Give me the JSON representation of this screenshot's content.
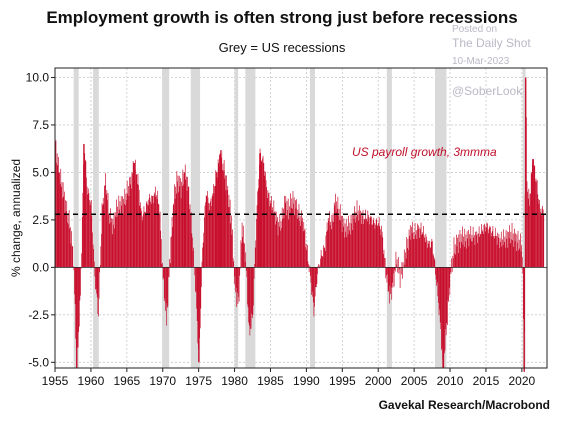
{
  "header": {
    "title": "Employment growth is often strong just before recessions",
    "subtitle": "Grey = US recessions"
  },
  "watermark": {
    "posted_on": "Posted on",
    "site": "The Daily Shot",
    "date": "10-Mar-2023",
    "handle": "@SoberLook"
  },
  "footer": {
    "source": "Gavekal Research/Macrobond"
  },
  "colors": {
    "bar": "#c8102e",
    "recession": "#d9d9d9",
    "threshold": "#000000"
  },
  "chart_data": {
    "type": "bar",
    "title": "Employment growth is often strong just before recessions",
    "subtitle": "Grey = US recessions",
    "ylabel": "% change, annualized",
    "xlabel": "",
    "xlim": [
      1955,
      2023.5
    ],
    "ylim": [
      -5.3,
      10.5
    ],
    "xticks": [
      "1955",
      "1960",
      "1965",
      "1970",
      "1975",
      "1980",
      "1985",
      "1990",
      "1995",
      "2000",
      "2005",
      "2010",
      "2015",
      "2020"
    ],
    "yticks": [
      "-5.0",
      "-2.5",
      "0.0",
      "2.5",
      "5.0",
      "7.5",
      "10.0"
    ],
    "grid": true,
    "series": [
      {
        "name": "US payroll growth, 3mmma",
        "x": [
          1955.0,
          1955.5,
          1956.0,
          1956.5,
          1957.0,
          1957.5,
          1958.0,
          1958.5,
          1959.0,
          1959.5,
          1960.0,
          1960.5,
          1961.0,
          1961.5,
          1962.0,
          1962.5,
          1963.0,
          1963.5,
          1964.0,
          1964.5,
          1965.0,
          1965.5,
          1966.0,
          1966.5,
          1967.0,
          1967.5,
          1968.0,
          1968.5,
          1969.0,
          1969.5,
          1970.0,
          1970.5,
          1971.0,
          1971.5,
          1972.0,
          1972.5,
          1973.0,
          1973.5,
          1974.0,
          1974.5,
          1975.0,
          1975.5,
          1976.0,
          1976.5,
          1977.0,
          1977.5,
          1978.0,
          1978.5,
          1979.0,
          1979.5,
          1980.0,
          1980.5,
          1981.0,
          1981.5,
          1982.0,
          1982.5,
          1983.0,
          1983.5,
          1984.0,
          1984.5,
          1985.0,
          1985.5,
          1986.0,
          1986.5,
          1987.0,
          1987.5,
          1988.0,
          1988.5,
          1989.0,
          1989.5,
          1990.0,
          1990.5,
          1991.0,
          1991.5,
          1992.0,
          1992.5,
          1993.0,
          1993.5,
          1994.0,
          1994.5,
          1995.0,
          1995.5,
          1996.0,
          1996.5,
          1997.0,
          1997.5,
          1998.0,
          1998.5,
          1999.0,
          1999.5,
          2000.0,
          2000.5,
          2001.0,
          2001.5,
          2002.0,
          2002.5,
          2003.0,
          2003.5,
          2004.0,
          2004.5,
          2005.0,
          2005.5,
          2006.0,
          2006.5,
          2007.0,
          2007.5,
          2008.0,
          2008.5,
          2009.0,
          2009.5,
          2010.0,
          2010.5,
          2011.0,
          2011.5,
          2012.0,
          2012.5,
          2013.0,
          2013.5,
          2014.0,
          2014.5,
          2015.0,
          2015.5,
          2016.0,
          2016.5,
          2017.0,
          2017.5,
          2018.0,
          2018.5,
          2019.0,
          2019.5,
          2020.0,
          2020.3,
          2020.5,
          2020.7,
          2021.0,
          2021.5,
          2022.0,
          2022.5,
          2023.0
        ],
        "values": [
          6.6,
          5.0,
          4.2,
          3.1,
          2.3,
          0.6,
          -5.3,
          -1.5,
          6.5,
          4.0,
          3.3,
          -0.5,
          -2.5,
          3.0,
          4.6,
          2.8,
          2.2,
          3.0,
          3.3,
          3.4,
          4.0,
          4.5,
          5.5,
          4.6,
          2.7,
          3.0,
          3.6,
          3.6,
          4.0,
          3.2,
          -0.6,
          -2.8,
          0.8,
          3.6,
          4.7,
          4.2,
          5.0,
          4.3,
          2.1,
          -0.9,
          -5.0,
          1.0,
          4.0,
          3.2,
          4.0,
          5.0,
          6.0,
          5.1,
          4.0,
          2.6,
          -1.0,
          -2.0,
          2.3,
          0.5,
          -3.5,
          -2.5,
          2.6,
          6.0,
          5.5,
          4.0,
          3.4,
          3.0,
          2.2,
          2.4,
          3.5,
          3.0,
          3.6,
          3.2,
          2.7,
          2.4,
          1.0,
          -0.5,
          -2.3,
          -0.3,
          0.6,
          1.0,
          2.6,
          2.3,
          3.5,
          3.0,
          2.3,
          2.0,
          2.2,
          2.6,
          3.0,
          2.8,
          2.6,
          2.7,
          2.5,
          2.3,
          2.4,
          1.8,
          -0.2,
          -1.5,
          -1.0,
          0.5,
          -0.5,
          0.2,
          1.2,
          2.0,
          1.8,
          2.0,
          2.0,
          1.6,
          1.2,
          1.3,
          -0.5,
          -2.5,
          -5.3,
          -3.0,
          -0.5,
          1.0,
          1.3,
          1.6,
          1.5,
          1.6,
          1.7,
          1.6,
          1.8,
          2.0,
          2.2,
          2.0,
          1.8,
          1.6,
          1.4,
          1.5,
          1.6,
          1.8,
          1.5,
          1.4,
          1.0,
          -5.5,
          10.0,
          4.0,
          3.5,
          5.7,
          4.5,
          3.0,
          3.0
        ]
      }
    ],
    "threshold": 2.8,
    "recessions": [
      [
        1957.6,
        1958.3
      ],
      [
        1960.3,
        1961.1
      ],
      [
        1969.9,
        1970.9
      ],
      [
        1973.9,
        1975.2
      ],
      [
        1980.0,
        1980.5
      ],
      [
        1981.5,
        1982.9
      ],
      [
        1990.5,
        1991.2
      ],
      [
        2001.2,
        2001.9
      ],
      [
        2007.9,
        2009.5
      ],
      [
        2020.1,
        2020.3
      ]
    ],
    "annotations": [
      {
        "text": "US payroll growth, 3mmma"
      }
    ]
  }
}
